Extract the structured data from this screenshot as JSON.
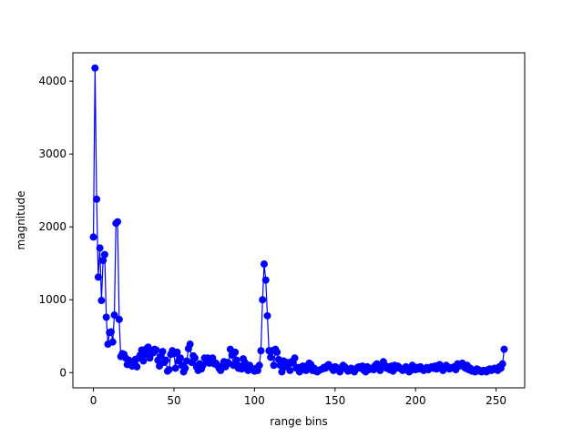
{
  "chart_data": {
    "type": "line",
    "x_label": "range bins",
    "y_label": "magnitude",
    "xlim": [
      -12.75,
      267.75
    ],
    "ylim": [
      -209,
      4389
    ],
    "xticks": [
      0,
      50,
      100,
      150,
      200,
      250
    ],
    "yticks": [
      0,
      1000,
      2000,
      3000,
      4000
    ],
    "grid": false,
    "marker": "circle",
    "x": [
      0,
      1,
      2,
      3,
      4,
      5,
      6,
      7,
      8,
      9,
      10,
      11,
      12,
      13,
      14,
      15,
      16,
      17,
      18,
      19,
      20,
      21,
      22,
      23,
      24,
      25,
      26,
      27,
      28,
      29,
      30,
      31,
      32,
      33,
      34,
      35,
      36,
      37,
      38,
      39,
      40,
      41,
      42,
      43,
      44,
      45,
      46,
      47,
      48,
      49,
      50,
      51,
      52,
      53,
      54,
      55,
      56,
      57,
      58,
      59,
      60,
      61,
      62,
      63,
      64,
      65,
      66,
      67,
      68,
      69,
      70,
      71,
      72,
      73,
      74,
      75,
      76,
      77,
      78,
      79,
      80,
      81,
      82,
      83,
      84,
      85,
      86,
      87,
      88,
      89,
      90,
      91,
      92,
      93,
      94,
      95,
      96,
      97,
      98,
      99,
      100,
      101,
      102,
      103,
      104,
      105,
      106,
      107,
      108,
      109,
      110,
      111,
      112,
      113,
      114,
      115,
      116,
      117,
      118,
      119,
      120,
      121,
      122,
      123,
      124,
      125,
      126,
      127,
      128,
      129,
      130,
      131,
      132,
      133,
      134,
      135,
      136,
      137,
      138,
      139,
      140,
      141,
      142,
      143,
      144,
      145,
      146,
      147,
      148,
      149,
      150,
      151,
      152,
      153,
      154,
      155,
      156,
      157,
      158,
      159,
      160,
      161,
      162,
      163,
      164,
      165,
      166,
      167,
      168,
      169,
      170,
      171,
      172,
      173,
      174,
      175,
      176,
      177,
      178,
      179,
      180,
      181,
      182,
      183,
      184,
      185,
      186,
      187,
      188,
      189,
      190,
      191,
      192,
      193,
      194,
      195,
      196,
      197,
      198,
      199,
      200,
      201,
      202,
      203,
      204,
      205,
      206,
      207,
      208,
      209,
      210,
      211,
      212,
      213,
      214,
      215,
      216,
      217,
      218,
      219,
      220,
      221,
      222,
      223,
      224,
      225,
      226,
      227,
      228,
      229,
      230,
      231,
      232,
      233,
      234,
      235,
      236,
      237,
      238,
      239,
      240,
      241,
      242,
      243,
      244,
      245,
      246,
      247,
      248,
      249,
      250,
      251,
      252,
      253,
      254,
      255
    ],
    "series": [
      {
        "color": "#0000ff",
        "values": [
          1860,
          4180,
          2380,
          1310,
          1710,
          990,
          1540,
          1620,
          760,
          390,
          550,
          560,
          420,
          790,
          2050,
          2070,
          730,
          220,
          260,
          250,
          200,
          110,
          170,
          150,
          90,
          130,
          180,
          80,
          200,
          240,
          310,
          160,
          250,
          330,
          350,
          200,
          290,
          270,
          320,
          310,
          170,
          90,
          230,
          290,
          140,
          170,
          20,
          40,
          250,
          300,
          260,
          60,
          280,
          160,
          200,
          100,
          10,
          60,
          160,
          330,
          390,
          140,
          230,
          200,
          80,
          30,
          120,
          50,
          100,
          200,
          180,
          200,
          130,
          190,
          200,
          120,
          130,
          100,
          60,
          30,
          90,
          150,
          80,
          140,
          130,
          320,
          240,
          100,
          280,
          170,
          60,
          90,
          50,
          190,
          140,
          70,
          30,
          100,
          60,
          40,
          20,
          60,
          30,
          100,
          300,
          1000,
          1490,
          1270,
          780,
          300,
          210,
          300,
          100,
          320,
          280,
          180,
          100,
          10,
          160,
          80,
          140,
          120,
          30,
          150,
          130,
          200,
          60,
          70,
          10,
          50,
          90,
          40,
          30,
          100,
          130,
          110,
          30,
          60,
          20,
          10,
          30,
          40,
          50,
          70,
          60,
          90,
          110,
          80,
          60,
          30,
          80,
          70,
          40,
          10,
          60,
          100,
          80,
          50,
          20,
          30,
          60,
          40,
          10,
          50,
          70,
          80,
          60,
          90,
          30,
          10,
          80,
          40,
          60,
          50,
          40,
          100,
          120,
          60,
          30,
          110,
          150,
          100,
          60,
          80,
          40,
          90,
          20,
          100,
          60,
          90,
          70,
          50,
          30,
          40,
          80,
          60,
          10,
          30,
          100,
          60,
          40,
          70,
          50,
          80,
          60,
          30,
          50,
          70,
          40,
          60,
          80,
          60,
          90,
          50,
          100,
          110,
          70,
          30,
          60,
          100,
          80,
          50,
          60,
          70,
          80,
          40,
          120,
          90,
          100,
          130,
          80,
          60,
          100,
          40,
          60,
          20,
          30,
          10,
          50,
          40,
          20,
          10,
          30,
          20,
          10,
          40,
          50,
          30,
          40,
          60,
          50,
          30,
          80,
          60,
          120,
          320
        ]
      }
    ]
  }
}
